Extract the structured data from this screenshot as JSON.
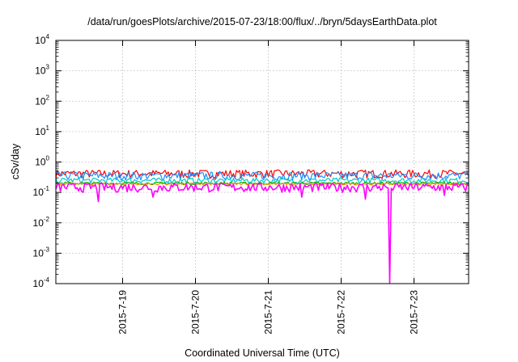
{
  "chart_data": {
    "type": "line",
    "title": "/data/run/goesPlots/archive/2015-07-23/18:00/flux/../bryn/5daysEarthData.plot",
    "xlabel": "Coordinated Universal Time (UTC)",
    "ylabel": "cSv/day",
    "y_scale": "log",
    "ylim": [
      0.0001,
      10000
    ],
    "xlim": [
      "2015-07-18 02:00",
      "2015-07-23 18:00"
    ],
    "x_ticks": [
      "2015-7-19",
      "2015-7-20",
      "2015-7-21",
      "2015-7-22",
      "2015-7-23"
    ],
    "y_ticks": [
      {
        "value": 0.0001,
        "base": "10",
        "exp": "-4"
      },
      {
        "value": 0.001,
        "base": "10",
        "exp": "-3"
      },
      {
        "value": 0.01,
        "base": "10",
        "exp": "-2"
      },
      {
        "value": 0.1,
        "base": "10",
        "exp": "-1"
      },
      {
        "value": 1,
        "base": "10",
        "exp": "0"
      },
      {
        "value": 10,
        "base": "10",
        "exp": "1"
      },
      {
        "value": 100,
        "base": "10",
        "exp": "2"
      },
      {
        "value": 1000,
        "base": "10",
        "exp": "3"
      },
      {
        "value": 10000,
        "base": "10",
        "exp": "4"
      }
    ],
    "grid": true,
    "legend": "none",
    "series": [
      {
        "color": "#ff0000",
        "x_start": "2015-07-18 02:00",
        "x_end": "2015-07-23 18:00",
        "typical": 0.42,
        "spread": 0.13
      },
      {
        "color": "#1e90ff",
        "x_start": "2015-07-18 02:00",
        "x_end": "2015-07-23 18:00",
        "typical": 0.36,
        "spread": 0.11
      },
      {
        "color": "#00c8c8",
        "x_start": "2015-07-18 02:00",
        "x_end": "2015-07-23 18:00",
        "typical": 0.25,
        "spread": 0.05
      },
      {
        "color": "#00b000",
        "x_start": "2015-07-18 02:00",
        "x_end": "2015-07-23 18:00",
        "typical": 0.2,
        "spread": 0.02
      },
      {
        "color": "#ff8c00",
        "x_start": "2015-07-18 02:00",
        "x_end": "2015-07-23 18:00",
        "typical": 0.19,
        "spread": 0.015
      },
      {
        "color": "#ff00ff",
        "x_start": "2015-07-18 02:00",
        "x_end": "2015-07-23 18:00",
        "typical": 0.15,
        "spread": 0.05,
        "dips": [
          {
            "x": "2015-07-18 16:00",
            "value": 0.05
          },
          {
            "x": "2015-07-19 10:00",
            "value": 0.07
          },
          {
            "x": "2015-07-21 11:00",
            "value": 0.07
          },
          {
            "x": "2015-07-22 08:00",
            "value": 0.06
          },
          {
            "x": "2015-07-22 16:00",
            "value": 0.0001
          },
          {
            "x": "2015-07-23 10:00",
            "value": 0.08
          }
        ]
      }
    ]
  }
}
